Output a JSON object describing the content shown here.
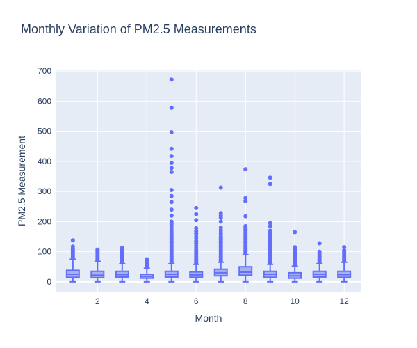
{
  "chart_data": {
    "type": "box",
    "title": "Monthly Variation of PM2.5 Measurements",
    "xlabel": "Month",
    "ylabel": "PM2.5 Measurement",
    "x_ticks": [
      2,
      4,
      6,
      8,
      10,
      12
    ],
    "y_ticks": [
      0,
      100,
      200,
      300,
      400,
      500,
      600,
      700
    ],
    "xlim": [
      0.3,
      12.7
    ],
    "ylim": [
      -35,
      705
    ],
    "grid": true,
    "colors": {
      "plot_bg": "#e5ecf6",
      "box_fill": "#a5b1f0",
      "box_line": "#636efa",
      "grid": "#ffffff",
      "text": "#2a3f5f"
    },
    "boxes": [
      {
        "month": 1,
        "whisker_low": 0,
        "q1": 15,
        "median": 25,
        "q3": 38,
        "whisker_high": 75,
        "outliers": [
          80,
          85,
          90,
          95,
          100,
          105,
          110,
          117,
          138
        ]
      },
      {
        "month": 2,
        "whisker_low": 0,
        "q1": 14,
        "median": 22,
        "q3": 35,
        "whisker_high": 68,
        "outliers": [
          72,
          76,
          80,
          84,
          88,
          92,
          96,
          100,
          104,
          107
        ]
      },
      {
        "month": 3,
        "whisker_low": 0,
        "q1": 16,
        "median": 24,
        "q3": 35,
        "whisker_high": 60,
        "outliers": [
          64,
          68,
          72,
          76,
          80,
          85,
          90,
          95,
          100,
          105,
          110,
          113
        ]
      },
      {
        "month": 4,
        "whisker_low": 0,
        "q1": 12,
        "median": 18,
        "q3": 25,
        "whisker_high": 45,
        "outliers": [
          48,
          52,
          56,
          60,
          64,
          68,
          72,
          75
        ]
      },
      {
        "month": 5,
        "whisker_low": 0,
        "q1": 16,
        "median": 25,
        "q3": 35,
        "whisker_high": 60,
        "outliers": [
          64,
          68,
          72,
          76,
          80,
          85,
          90,
          95,
          100,
          105,
          110,
          115,
          120,
          125,
          130,
          135,
          140,
          145,
          150,
          155,
          160,
          165,
          170,
          178,
          185,
          192,
          200,
          220,
          240,
          265,
          285,
          305,
          365,
          378,
          395,
          418,
          442,
          497,
          578,
          672
        ]
      },
      {
        "month": 6,
        "whisker_low": 0,
        "q1": 15,
        "median": 23,
        "q3": 33,
        "whisker_high": 58,
        "outliers": [
          62,
          66,
          70,
          75,
          80,
          85,
          90,
          95,
          100,
          105,
          112,
          120,
          128,
          135,
          143,
          150,
          160,
          168,
          178,
          205,
          225,
          245
        ]
      },
      {
        "month": 7,
        "whisker_low": 0,
        "q1": 20,
        "median": 30,
        "q3": 42,
        "whisker_high": 65,
        "outliers": [
          70,
          75,
          80,
          85,
          90,
          95,
          100,
          105,
          110,
          115,
          120,
          125,
          130,
          135,
          140,
          145,
          150,
          158,
          165,
          172,
          180,
          200,
          213,
          220,
          228,
          313
        ]
      },
      {
        "month": 8,
        "whisker_low": 0,
        "q1": 22,
        "median": 32,
        "q3": 50,
        "whisker_high": 90,
        "outliers": [
          95,
          100,
          105,
          110,
          115,
          120,
          125,
          130,
          135,
          140,
          145,
          150,
          155,
          160,
          165,
          170,
          175,
          180,
          185,
          218,
          268,
          278,
          374
        ]
      },
      {
        "month": 9,
        "whisker_low": 0,
        "q1": 15,
        "median": 25,
        "q3": 35,
        "whisker_high": 58,
        "outliers": [
          62,
          66,
          70,
          75,
          80,
          85,
          90,
          95,
          100,
          105,
          110,
          115,
          120,
          125,
          130,
          135,
          140,
          145,
          150,
          160,
          170,
          185,
          195,
          325,
          346
        ]
      },
      {
        "month": 10,
        "whisker_low": 0,
        "q1": 12,
        "median": 20,
        "q3": 30,
        "whisker_high": 52,
        "outliers": [
          56,
          60,
          64,
          68,
          72,
          76,
          80,
          85,
          90,
          95,
          100,
          105,
          110,
          115,
          165
        ]
      },
      {
        "month": 11,
        "whisker_low": 0,
        "q1": 16,
        "median": 25,
        "q3": 35,
        "whisker_high": 60,
        "outliers": [
          64,
          68,
          72,
          76,
          80,
          85,
          90,
          95,
          100,
          128
        ]
      },
      {
        "month": 12,
        "whisker_low": 0,
        "q1": 15,
        "median": 24,
        "q3": 35,
        "whisker_high": 65,
        "outliers": [
          68,
          72,
          76,
          80,
          85,
          90,
          95,
          100,
          105,
          115
        ]
      }
    ]
  }
}
